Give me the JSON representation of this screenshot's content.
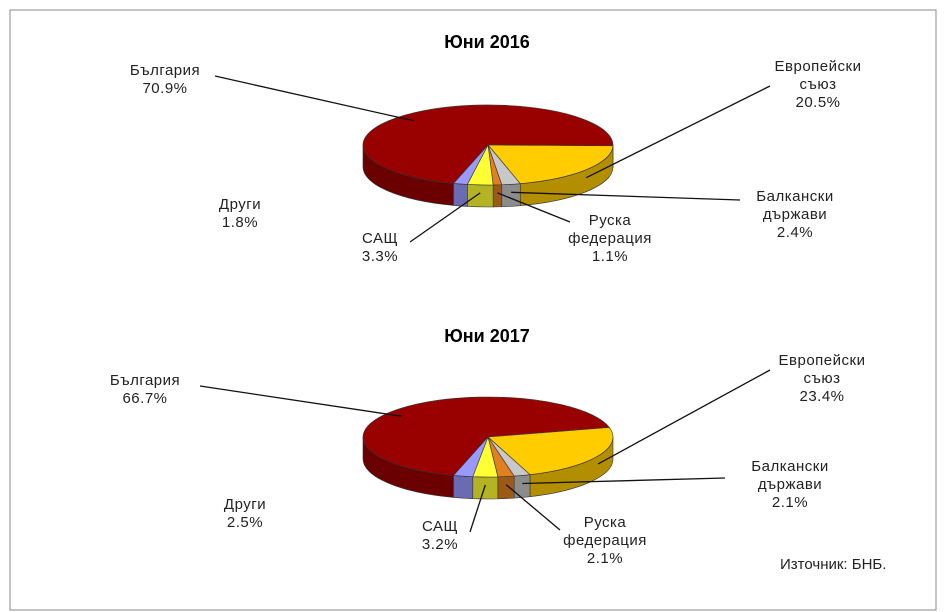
{
  "chart_data": [
    {
      "type": "pie3d",
      "title": "Юни 2016",
      "categories": [
        "България",
        "Европейски съюз",
        "Балкански държави",
        "Руска федерация",
        "САЩ",
        "Други"
      ],
      "values": [
        70.9,
        20.5,
        2.4,
        1.1,
        3.3,
        1.8
      ],
      "value_labels": [
        "70.9%",
        "20.5%",
        "2.4%",
        "1.1%",
        "3.3%",
        "1.8%"
      ],
      "colors": [
        "#990000",
        "#ffcc00",
        "#c8c8c8",
        "#e08020",
        "#ffff33",
        "#9999ff"
      ]
    },
    {
      "type": "pie3d",
      "title": "Юни 2017",
      "categories": [
        "България",
        "Европейски съюз",
        "Балкански държави",
        "Руска федерация",
        "САЩ",
        "Други"
      ],
      "values": [
        66.7,
        23.4,
        2.1,
        2.1,
        3.2,
        2.5
      ],
      "value_labels": [
        "66.7%",
        "23.4%",
        "2.1%",
        "2.1%",
        "3.2%",
        "2.5%"
      ],
      "colors": [
        "#990000",
        "#ffcc00",
        "#c8c8c8",
        "#e08020",
        "#ffff33",
        "#9999ff"
      ]
    }
  ],
  "source": "Източник: БНБ."
}
